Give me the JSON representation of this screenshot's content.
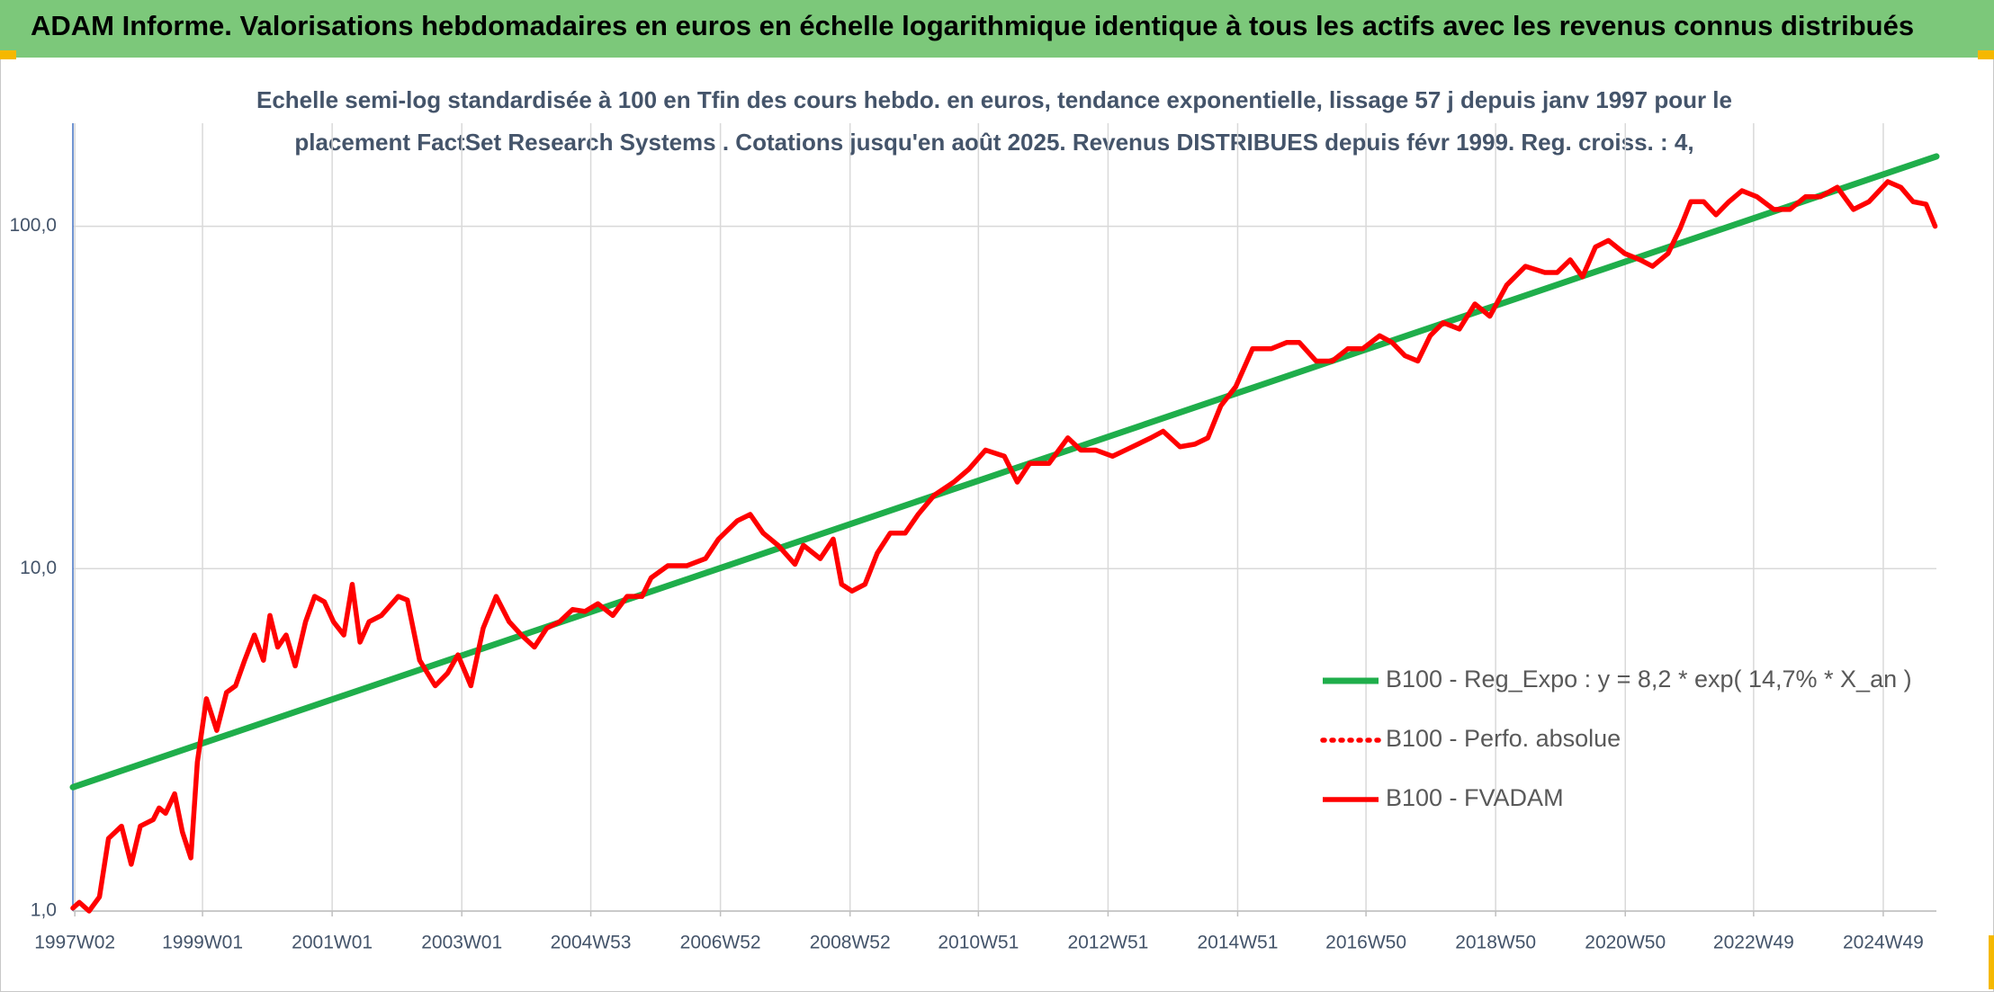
{
  "chart_data": {
    "type": "line",
    "title": "ADAM Informe. Valorisations hebdomadaires en euros en échelle logarithmique identique à tous les actifs avec les revenus connus distribués",
    "subtitle": [
      "Echelle semi-log standardisée à 100 en Tfin des cours hebdo. en euros, tendance exponentielle, lissage 57 j depuis janv 1997 pour le",
      "placement FactSet Research Systems . Cotations jusqu'en août 2025. Revenus DISTRIBUES depuis févr 1999. Reg. croiss. : 4,"
    ],
    "xlim": [
      1997.0,
      2025.75
    ],
    "xticks": [
      {
        "value": 1997.03,
        "label": "1997W02"
      },
      {
        "value": 1999.0,
        "label": "1999W01"
      },
      {
        "value": 2001.0,
        "label": "2001W01"
      },
      {
        "value": 2003.0,
        "label": "2003W01"
      },
      {
        "value": 2004.99,
        "label": "2004W53"
      },
      {
        "value": 2006.99,
        "label": "2006W52"
      },
      {
        "value": 2008.99,
        "label": "2008W52"
      },
      {
        "value": 2010.97,
        "label": "2010W51"
      },
      {
        "value": 2012.97,
        "label": "2012W51"
      },
      {
        "value": 2014.97,
        "label": "2014W51"
      },
      {
        "value": 2016.95,
        "label": "2016W50"
      },
      {
        "value": 2018.95,
        "label": "2018W50"
      },
      {
        "value": 2020.95,
        "label": "2020W50"
      },
      {
        "value": 2022.93,
        "label": "2022W49"
      },
      {
        "value": 2024.93,
        "label": "2024W49"
      }
    ],
    "ylim": [
      1,
      200
    ],
    "yticks": [
      {
        "value": 1,
        "label": "1,0"
      },
      {
        "value": 10,
        "label": "10,0"
      },
      {
        "value": 100,
        "label": "100,0"
      }
    ],
    "log_scale_y": true,
    "grid": true,
    "legend_position": "right",
    "series": [
      {
        "name": "B100 - Reg_Expo : y = 8,2 * exp( 14,7% *  X_an )",
        "color": "#1fae4b",
        "dash": "solid",
        "x": [
          1997.0,
          2025.75
        ],
        "values": [
          2.3,
          160
        ]
      },
      {
        "name": "B100 - Perfo. absolue",
        "color": "#ff0000",
        "dash": "dotted",
        "x": [],
        "values": []
      },
      {
        "name": "B100 - FVADAM",
        "color": "#ff0000",
        "dash": "solid",
        "x": [
          1997.0,
          1997.1,
          1997.25,
          1997.41,
          1997.55,
          1997.75,
          1997.9,
          1998.04,
          1998.24,
          1998.33,
          1998.43,
          1998.57,
          1998.69,
          1998.82,
          1998.92,
          1999.06,
          1999.22,
          1999.37,
          1999.51,
          1999.65,
          1999.8,
          1999.94,
          2000.04,
          2000.16,
          2000.29,
          2000.43,
          2000.59,
          2000.73,
          2000.88,
          2001.02,
          2001.18,
          2001.31,
          2001.43,
          2001.57,
          2001.76,
          2002.02,
          2002.16,
          2002.35,
          2002.59,
          2002.78,
          2002.94,
          2003.14,
          2003.33,
          2003.53,
          2003.73,
          2003.92,
          2004.12,
          2004.31,
          2004.51,
          2004.71,
          2004.9,
          2005.1,
          2005.33,
          2005.55,
          2005.78,
          2005.92,
          2006.18,
          2006.47,
          2006.76,
          2006.96,
          2007.25,
          2007.45,
          2007.65,
          2007.88,
          2008.14,
          2008.27,
          2008.53,
          2008.73,
          2008.86,
          2009.02,
          2009.22,
          2009.41,
          2009.61,
          2009.84,
          2010.04,
          2010.29,
          2010.59,
          2010.82,
          2011.08,
          2011.37,
          2011.57,
          2011.76,
          2012.06,
          2012.35,
          2012.55,
          2012.78,
          2013.04,
          2013.24,
          2013.43,
          2013.63,
          2013.82,
          2014.08,
          2014.31,
          2014.51,
          2014.71,
          2014.94,
          2015.2,
          2015.49,
          2015.73,
          2015.92,
          2016.18,
          2016.43,
          2016.67,
          2016.9,
          2017.16,
          2017.35,
          2017.55,
          2017.75,
          2017.94,
          2018.14,
          2018.39,
          2018.63,
          2018.86,
          2019.12,
          2019.41,
          2019.71,
          2019.9,
          2020.1,
          2020.29,
          2020.49,
          2020.69,
          2020.94,
          2021.18,
          2021.37,
          2021.61,
          2021.8,
          2021.96,
          2022.16,
          2022.35,
          2022.55,
          2022.75,
          2022.98,
          2023.24,
          2023.49,
          2023.73,
          2023.96,
          2024.22,
          2024.47,
          2024.71,
          2025.0,
          2025.2,
          2025.39,
          2025.59,
          2025.73
        ],
        "values": [
          1.02,
          1.06,
          1.0,
          1.1,
          1.63,
          1.77,
          1.37,
          1.77,
          1.85,
          2.0,
          1.93,
          2.2,
          1.7,
          1.43,
          2.72,
          4.17,
          3.37,
          4.35,
          4.55,
          5.4,
          6.4,
          5.4,
          7.3,
          5.9,
          6.4,
          5.2,
          7.0,
          8.3,
          8.0,
          7.0,
          6.4,
          9.0,
          6.1,
          7.0,
          7.3,
          8.3,
          8.1,
          5.4,
          4.55,
          4.95,
          5.6,
          4.55,
          6.7,
          8.3,
          7.0,
          6.4,
          5.9,
          6.7,
          7.0,
          7.6,
          7.5,
          7.9,
          7.3,
          8.3,
          8.3,
          9.4,
          10.2,
          10.2,
          10.7,
          12.2,
          13.8,
          14.4,
          12.7,
          11.7,
          10.3,
          11.7,
          10.7,
          12.2,
          9.0,
          8.6,
          9.0,
          11.1,
          12.7,
          12.7,
          14.4,
          16.4,
          17.9,
          19.5,
          22.2,
          21.3,
          17.9,
          20.3,
          20.3,
          24.1,
          22.2,
          22.2,
          21.3,
          22.2,
          23.1,
          24.1,
          25.2,
          22.7,
          23.1,
          24.1,
          29.9,
          34.0,
          43.9,
          43.9,
          45.8,
          45.8,
          40.4,
          40.4,
          43.9,
          43.9,
          47.9,
          45.8,
          41.9,
          40.4,
          47.9,
          52.3,
          50.1,
          59.3,
          54.6,
          67.3,
          76.4,
          73.3,
          73.3,
          79.8,
          71.2,
          87,
          90.9,
          83.3,
          79.8,
          76.4,
          83.3,
          99,
          118,
          118,
          108,
          118,
          127,
          122,
          112,
          112,
          122,
          122,
          130,
          112,
          118,
          135,
          130,
          118,
          116,
          100
        ]
      }
    ]
  }
}
